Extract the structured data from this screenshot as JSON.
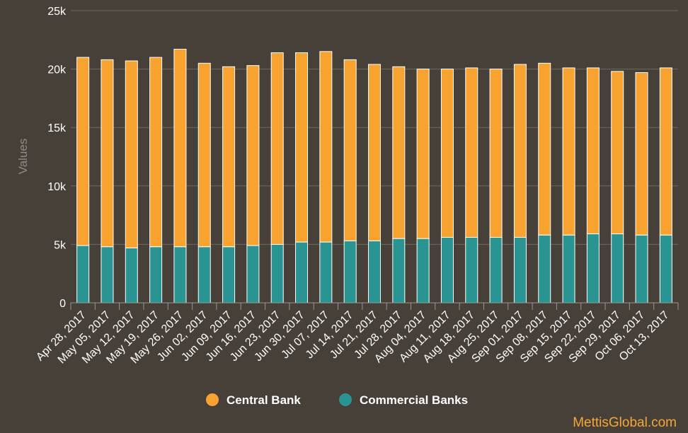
{
  "chart_data": {
    "type": "bar",
    "stacked": true,
    "ylabel": "Values",
    "ylim": [
      0,
      25000
    ],
    "yticks": [
      0,
      5000,
      10000,
      15000,
      20000,
      25000
    ],
    "ytick_labels": [
      "0",
      "5k",
      "10k",
      "15k",
      "20k",
      "25k"
    ],
    "grid": true,
    "legend_position": "bottom-center",
    "categories": [
      "Apr 28, 2017",
      "May 05, 2017",
      "May 12, 2017",
      "May 19, 2017",
      "May 26, 2017",
      "Jun 02, 2017",
      "Jun 09, 2017",
      "Jun 16, 2017",
      "Jun 23, 2017",
      "Jun 30, 2017",
      "Jul 07, 2017",
      "Jul 14, 2017",
      "Jul 21, 2017",
      "Jul 28, 2017",
      "Aug 04, 2017",
      "Aug 11, 2017",
      "Aug 18, 2017",
      "Aug 25, 2017",
      "Sep 01, 2017",
      "Sep 08, 2017",
      "Sep 15, 2017",
      "Sep 22, 2017",
      "Sep 29, 2017",
      "Oct 06, 2017",
      "Oct 13, 2017"
    ],
    "series": [
      {
        "name": "Commercial Banks",
        "color": "#2a9492",
        "values": [
          4900,
          4800,
          4700,
          4800,
          4800,
          4800,
          4800,
          4900,
          5000,
          5200,
          5200,
          5300,
          5300,
          5500,
          5500,
          5600,
          5600,
          5600,
          5600,
          5800,
          5800,
          5900,
          5900,
          5800,
          5800
        ]
      },
      {
        "name": "Central Bank",
        "color": "#f8a22f",
        "values": [
          16100,
          16000,
          16000,
          16200,
          16900,
          15700,
          15400,
          15400,
          16400,
          16200,
          16300,
          15500,
          15100,
          14700,
          14500,
          14400,
          14500,
          14400,
          14800,
          14700,
          14300,
          14200,
          13900,
          13900,
          14300
        ]
      }
    ]
  },
  "legend": {
    "items": [
      {
        "label": "Central Bank",
        "color": "#f8a22f"
      },
      {
        "label": "Commercial Banks",
        "color": "#2a9492"
      }
    ]
  },
  "watermark": "MettisGlobal.com",
  "colors": {
    "background": "#464039",
    "grid": "#6e6862",
    "bar_border": "#ffffff"
  }
}
